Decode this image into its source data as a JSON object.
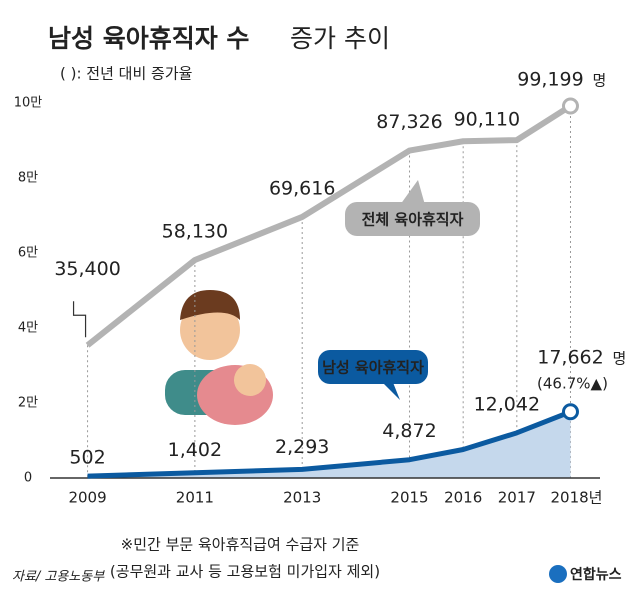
{
  "chart_data": {
    "type": "line",
    "title": "남성 육아휴직자 수",
    "title_suffix": "증가 추이",
    "note": "( ): 전년 대비 증가율",
    "x": [
      2009,
      2011,
      2013,
      2015,
      2016,
      2017,
      2018
    ],
    "xlim": [
      2008.3,
      2018.55
    ],
    "xticks": [
      2009,
      2011,
      2013,
      2015,
      2016,
      2017,
      {
        "value": 2018,
        "label": "2018년"
      }
    ],
    "ylim": [
      0,
      100000
    ],
    "yticks": [
      0,
      {
        "value": 20000,
        "label": "2만"
      },
      {
        "value": 40000,
        "label": "4만"
      },
      {
        "value": 60000,
        "label": "6만"
      },
      {
        "value": 80000,
        "label": "8만"
      },
      {
        "value": 100000,
        "label": "10만"
      }
    ],
    "series": [
      {
        "name": "전체 육아휴직자",
        "color": "#b3b3b3",
        "values": [
          35400,
          58130,
          69616,
          87326,
          89800,
          90110,
          99199
        ],
        "value_labels": [
          "35,400",
          "58,130",
          "69,616",
          "87,326",
          null,
          "90,110",
          "99,199"
        ]
      },
      {
        "name": "남성 육아휴직자",
        "color": "#0b5aa0",
        "values": [
          502,
          1402,
          2293,
          4872,
          7600,
          12042,
          17662
        ],
        "value_labels": [
          "502",
          "1,402",
          "2,293",
          "4,872",
          null,
          "12,042",
          "17,662"
        ]
      }
    ],
    "unit": "명",
    "growth_label": "(46.7%▲)",
    "footnote": [
      "※민간 부문 육아휴직급여 수급자 기준",
      "(공무원과 교사 등 고용보험 미가입자 제외)"
    ],
    "source": "자료/ 고용노동부",
    "logo": "연합뉴스"
  }
}
